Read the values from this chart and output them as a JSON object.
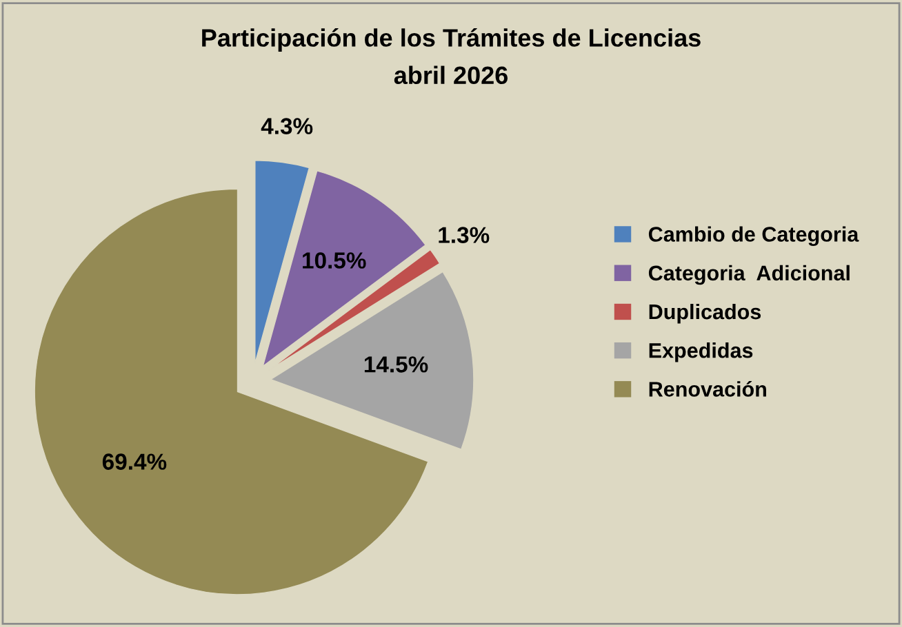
{
  "chart_data": {
    "type": "pie",
    "title": "Participación de los Trámites de Licencias",
    "subtitle": "abril 2026",
    "categories": [
      "Cambio de Categoria",
      "Categoria  Adicional",
      "Duplicados",
      "Expedidas",
      "Renovación"
    ],
    "values": [
      4.3,
      10.5,
      1.3,
      14.5,
      69.4
    ],
    "colors": [
      "#4f81bd",
      "#8064a2",
      "#c0504d",
      "#a5a5a5",
      "#948a54"
    ],
    "value_labels": [
      "4.3%",
      "10.5%",
      "1.3%",
      "14.5%",
      "69.4%"
    ],
    "legend": "right"
  }
}
